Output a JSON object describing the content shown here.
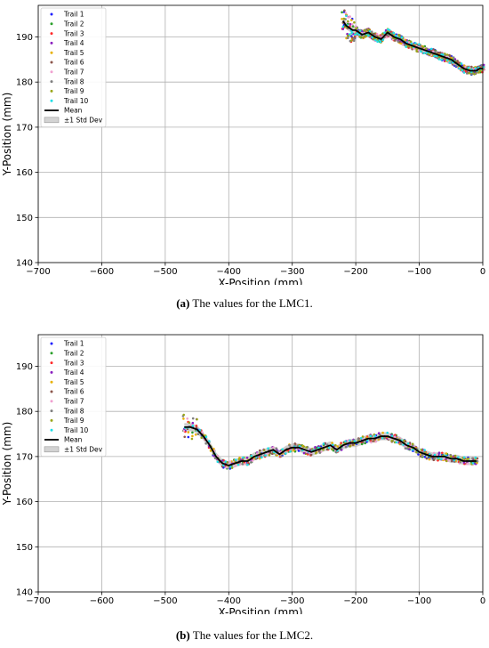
{
  "chart_data": [
    {
      "type": "scatter",
      "panel": "a",
      "caption_label": "(a)",
      "caption_text": "The values for the LMC1.",
      "xlabel": "X-Position (mm)",
      "ylabel": "Y-Position (mm)",
      "xlim": [
        -700,
        0
      ],
      "ylim": [
        140,
        197
      ],
      "xticks": [
        -700,
        -600,
        -500,
        -400,
        -300,
        -200,
        -100,
        0
      ],
      "xtick_labels": [
        "−700",
        "−600",
        "−500",
        "−400",
        "−300",
        "−200",
        "−100",
        "0"
      ],
      "yticks": [
        140,
        150,
        160,
        170,
        180,
        190
      ],
      "grid": true,
      "legend_position": "top-left",
      "legend": [
        "Trail 1",
        "Trail 2",
        "Trail 3",
        "Trail 4",
        "Trail 5",
        "Trail 6",
        "Trail 7",
        "Trail 8",
        "Trail 9",
        "Trail 10",
        "Mean",
        "±1 Std Dev"
      ],
      "trail_colors": [
        "#1f1fff",
        "#2ca02c",
        "#ff2a2a",
        "#8a1fbf",
        "#e8b000",
        "#8c564b",
        "#f0a0d0",
        "#7f7f7f",
        "#9aa61a",
        "#1fdfe6"
      ],
      "mean": {
        "x": [
          -220,
          -215,
          -210,
          -205,
          -200,
          -195,
          -190,
          -180,
          -170,
          -160,
          -150,
          -140,
          -130,
          -120,
          -110,
          -100,
          -90,
          -80,
          -70,
          -60,
          -50,
          -40,
          -30,
          -20,
          -10,
          -5,
          0
        ],
        "y": [
          193.5,
          192.5,
          192.0,
          191.5,
          191.5,
          191.0,
          190.5,
          191.0,
          190.0,
          189.5,
          191.0,
          190.0,
          189.5,
          188.5,
          188.0,
          187.5,
          187.0,
          186.5,
          186.0,
          185.5,
          185.0,
          184.0,
          183.0,
          182.5,
          182.5,
          183.0,
          183.0
        ]
      },
      "std_dev": 0.8
    },
    {
      "type": "scatter",
      "panel": "b",
      "caption_label": "(b)",
      "caption_text": "The values for the LMC2.",
      "xlabel": "X-Position (mm)",
      "ylabel": "Y-Position (mm)",
      "xlim": [
        -700,
        0
      ],
      "ylim": [
        140,
        197
      ],
      "xticks": [
        -700,
        -600,
        -500,
        -400,
        -300,
        -200,
        -100,
        0
      ],
      "xtick_labels": [
        "−700",
        "−600",
        "−500",
        "−400",
        "−300",
        "−200",
        "−100",
        "0"
      ],
      "yticks": [
        140,
        150,
        160,
        170,
        180,
        190
      ],
      "grid": true,
      "legend_position": "top-left",
      "legend": [
        "Trail 1",
        "Trail 2",
        "Trail 3",
        "Trail 4",
        "Trail 5",
        "Trail 6",
        "Trail 7",
        "Trail 8",
        "Trail 9",
        "Trail 10",
        "Mean",
        "±1 Std Dev"
      ],
      "trail_colors": [
        "#1f1fff",
        "#2ca02c",
        "#ff2a2a",
        "#8a1fbf",
        "#e8b000",
        "#8c564b",
        "#f0a0d0",
        "#7f7f7f",
        "#9aa61a",
        "#1fdfe6"
      ],
      "mean": {
        "x": [
          -470,
          -460,
          -450,
          -440,
          -430,
          -420,
          -410,
          -400,
          -390,
          -380,
          -370,
          -360,
          -350,
          -340,
          -330,
          -320,
          -310,
          -300,
          -290,
          -280,
          -270,
          -260,
          -250,
          -240,
          -230,
          -220,
          -210,
          -200,
          -190,
          -180,
          -170,
          -160,
          -150,
          -140,
          -130,
          -120,
          -110,
          -100,
          -90,
          -80,
          -70,
          -60,
          -50,
          -40,
          -30,
          -20,
          -10
        ],
        "y": [
          176.5,
          176.5,
          176.0,
          174.5,
          172.5,
          170.0,
          168.5,
          168.0,
          168.5,
          169.0,
          169.0,
          170.0,
          170.5,
          171.0,
          171.5,
          170.5,
          171.5,
          172.0,
          172.0,
          171.5,
          171.0,
          171.5,
          172.0,
          172.5,
          171.5,
          172.5,
          173.0,
          173.0,
          173.5,
          174.0,
          174.0,
          174.5,
          174.5,
          174.0,
          173.5,
          172.5,
          172.0,
          171.0,
          170.5,
          170.0,
          170.0,
          170.0,
          169.5,
          169.5,
          169.0,
          169.0,
          169.0
        ]
      },
      "std_dev": 0.9
    }
  ]
}
